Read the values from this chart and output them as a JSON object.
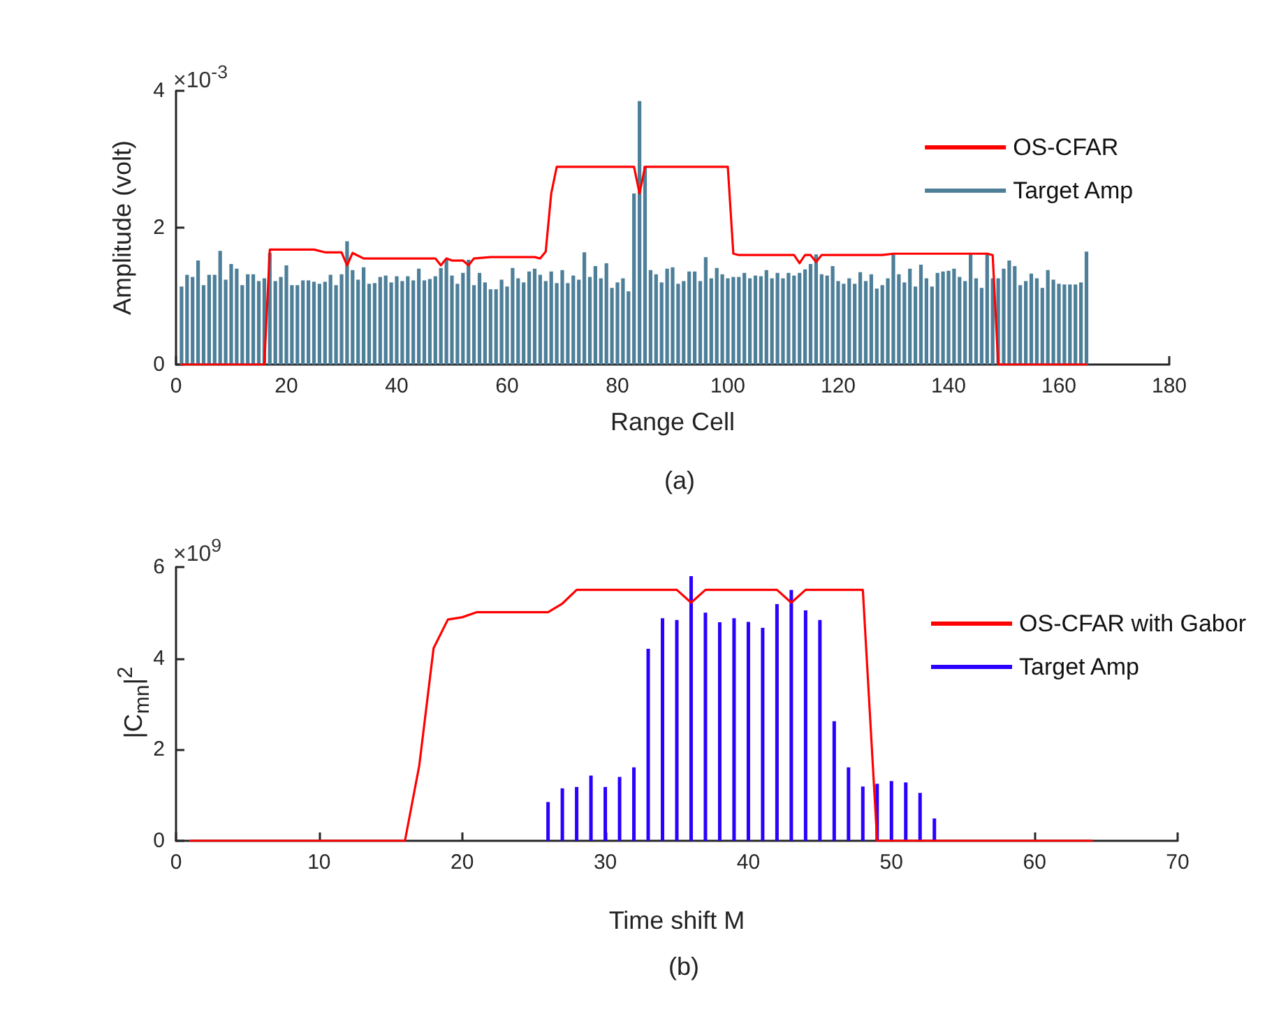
{
  "chart_data": [
    {
      "type": "bar",
      "title": "(a)",
      "xlabel": "Range Cell",
      "ylabel": "Amplitude (volt)",
      "annotations": [
        "×10$^{-3}$"
      ],
      "xlim": [
        0,
        180
      ],
      "xticks": [
        0,
        20,
        40,
        60,
        80,
        100,
        120,
        140,
        160,
        180
      ],
      "ylim": [
        0,
        4
      ],
      "yticks": [
        0,
        2,
        4
      ],
      "grid": false,
      "legend": "top right",
      "marker": "none",
      "series": [
        {
          "name": "OS-CFAR",
          "type": "line",
          "color": "#ff0000",
          "x": [
            1,
            16,
            17,
            25,
            27,
            30,
            31,
            32,
            34,
            47,
            48,
            49,
            50,
            52,
            53,
            54,
            57,
            65,
            66,
            67,
            68,
            69,
            83,
            84,
            85,
            100,
            101,
            102,
            112,
            113,
            114,
            115,
            116,
            117,
            128,
            130,
            147,
            148,
            149,
            165
          ],
          "values": [
            0,
            0,
            1.68,
            1.68,
            1.64,
            1.64,
            1.45,
            1.63,
            1.55,
            1.55,
            1.45,
            1.55,
            1.52,
            1.52,
            1.45,
            1.55,
            1.57,
            1.57,
            1.55,
            1.65,
            2.5,
            2.89,
            2.89,
            2.5,
            2.89,
            2.89,
            1.62,
            1.6,
            1.6,
            1.48,
            1.6,
            1.6,
            1.5,
            1.6,
            1.6,
            1.62,
            1.62,
            1.6,
            0,
            0
          ]
        },
        {
          "name": "Target Amp",
          "color": "#4e7f99",
          "x": [
            1,
            2,
            3,
            4,
            5,
            6,
            7,
            8,
            9,
            10,
            11,
            12,
            13,
            14,
            15,
            16,
            17,
            18,
            19,
            20,
            21,
            22,
            23,
            24,
            25,
            26,
            27,
            28,
            29,
            30,
            31,
            32,
            33,
            34,
            35,
            36,
            37,
            38,
            39,
            40,
            41,
            42,
            43,
            44,
            45,
            46,
            47,
            48,
            49,
            50,
            51,
            52,
            53,
            54,
            55,
            56,
            57,
            58,
            59,
            60,
            61,
            62,
            63,
            64,
            65,
            66,
            67,
            68,
            69,
            70,
            71,
            72,
            73,
            74,
            75,
            76,
            77,
            78,
            79,
            80,
            81,
            82,
            83,
            84,
            85,
            86,
            87,
            88,
            89,
            90,
            91,
            92,
            93,
            94,
            95,
            96,
            97,
            98,
            99,
            100,
            101,
            102,
            103,
            104,
            105,
            106,
            107,
            108,
            109,
            110,
            111,
            112,
            113,
            114,
            115,
            116,
            117,
            118,
            119,
            120,
            121,
            122,
            123,
            124,
            125,
            126,
            127,
            128,
            129,
            130,
            131,
            132,
            133,
            134,
            135,
            136,
            137,
            138,
            139,
            140,
            141,
            142,
            143,
            144,
            145,
            146,
            147,
            148,
            149,
            150,
            151,
            152,
            153,
            154,
            155,
            156,
            157,
            158,
            159,
            160,
            161,
            162,
            163,
            164,
            165
          ],
          "values": [
            1.14,
            1.31,
            1.28,
            1.52,
            1.16,
            1.31,
            1.31,
            1.66,
            1.24,
            1.47,
            1.4,
            1.16,
            1.32,
            1.32,
            1.22,
            1.26,
            1.63,
            1.22,
            1.28,
            1.45,
            1.16,
            1.16,
            1.23,
            1.23,
            1.21,
            1.18,
            1.21,
            1.31,
            1.16,
            1.32,
            1.8,
            1.38,
            1.24,
            1.42,
            1.18,
            1.19,
            1.28,
            1.3,
            1.2,
            1.29,
            1.22,
            1.29,
            1.23,
            1.4,
            1.23,
            1.25,
            1.29,
            1.41,
            1.54,
            1.3,
            1.18,
            1.34,
            1.53,
            1.16,
            1.34,
            1.2,
            1.1,
            1.1,
            1.24,
            1.14,
            1.41,
            1.26,
            1.2,
            1.36,
            1.4,
            1.31,
            1.22,
            1.36,
            1.19,
            1.38,
            1.19,
            1.3,
            1.24,
            1.64,
            1.28,
            1.44,
            1.26,
            1.48,
            1.12,
            1.2,
            1.26,
            1.07,
            2.5,
            3.85,
            2.9,
            1.38,
            1.32,
            1.2,
            1.4,
            1.42,
            1.18,
            1.22,
            1.36,
            1.36,
            1.22,
            1.57,
            1.26,
            1.41,
            1.32,
            1.26,
            1.28,
            1.28,
            1.34,
            1.26,
            1.3,
            1.29,
            1.38,
            1.26,
            1.34,
            1.26,
            1.34,
            1.3,
            1.34,
            1.39,
            1.47,
            1.61,
            1.32,
            1.3,
            1.44,
            1.22,
            1.18,
            1.26,
            1.18,
            1.35,
            1.22,
            1.32,
            1.11,
            1.16,
            1.26,
            1.61,
            1.32,
            1.2,
            1.4,
            1.14,
            1.46,
            1.26,
            1.14,
            1.34,
            1.36,
            1.37,
            1.4,
            1.28,
            1.22,
            1.61,
            1.26,
            1.12,
            1.62,
            1.26,
            1.26,
            1.4,
            1.52,
            1.44,
            1.16,
            1.22,
            1.33,
            1.26,
            1.12,
            1.38,
            1.24,
            1.18,
            1.17,
            1.17,
            1.17,
            1.2,
            1.65
          ]
        }
      ]
    },
    {
      "type": "bar",
      "title": "(b)",
      "xlabel": "Time shift M",
      "ylabel": "|C$_{mn}$|$^{2}$",
      "annotations": [
        "×10$^{9}$"
      ],
      "xlim": [
        0,
        70
      ],
      "xticks": [
        0,
        10,
        20,
        30,
        40,
        50,
        60,
        70
      ],
      "ylim": [
        0,
        6
      ],
      "yticks": [
        0,
        2,
        4,
        6
      ],
      "grid": false,
      "legend": "top right",
      "marker": "none",
      "series": [
        {
          "name": "OS-CFAR with Gabor",
          "type": "line",
          "color": "#ff0000",
          "x": [
            1,
            16,
            17,
            18,
            19,
            20,
            21,
            26,
            27,
            28,
            35,
            36,
            37,
            42,
            43,
            44,
            48,
            49,
            64
          ],
          "values": [
            0,
            0,
            1.65,
            4.22,
            4.85,
            4.9,
            5.01,
            5.01,
            5.2,
            5.5,
            5.5,
            5.22,
            5.5,
            5.5,
            5.22,
            5.5,
            5.5,
            0,
            0
          ]
        },
        {
          "name": "Target Amp",
          "color": "#2a00ff",
          "x": [
            1,
            2,
            3,
            4,
            5,
            6,
            7,
            8,
            9,
            10,
            11,
            12,
            13,
            14,
            15,
            16,
            17,
            18,
            19,
            20,
            21,
            22,
            23,
            24,
            25,
            26,
            27,
            28,
            29,
            30,
            31,
            32,
            33,
            34,
            35,
            36,
            37,
            38,
            39,
            40,
            41,
            42,
            43,
            44,
            45,
            46,
            47,
            48,
            49,
            50,
            51,
            52,
            53,
            54,
            55,
            56,
            57,
            58,
            59,
            60,
            61,
            62,
            63,
            64
          ],
          "values": [
            0,
            0,
            0,
            0,
            0,
            0,
            0,
            0,
            0,
            0,
            0,
            0,
            0,
            0,
            0,
            0,
            0,
            0,
            0,
            0,
            0,
            0,
            0,
            0,
            0,
            0.85,
            1.15,
            1.18,
            1.43,
            1.18,
            1.4,
            1.61,
            4.21,
            4.88,
            4.84,
            5.8,
            5.0,
            4.79,
            4.88,
            4.8,
            4.67,
            5.19,
            5.5,
            5.05,
            4.84,
            2.62,
            1.61,
            1.19,
            1.25,
            1.31,
            1.28,
            1.05,
            0.49,
            0,
            0,
            0,
            0,
            0,
            0,
            0,
            0,
            0,
            0,
            0
          ]
        }
      ]
    }
  ]
}
